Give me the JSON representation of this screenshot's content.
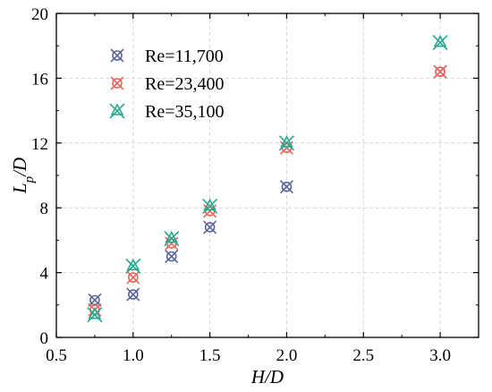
{
  "chart_data": {
    "type": "scatter",
    "xlabel": "H/D",
    "ylabel": "L_p/D",
    "xlim": [
      0.5,
      3.25
    ],
    "ylim": [
      0,
      20
    ],
    "xticks": [
      0.5,
      1.0,
      1.5,
      2.0,
      2.5,
      3.0
    ],
    "xtick_labels": [
      "0.5",
      "1.0",
      "1.5",
      "2.0",
      "2.5",
      "3.0"
    ],
    "yticks": [
      0,
      4,
      8,
      12,
      16,
      20
    ],
    "ytick_labels": [
      "0",
      "4",
      "8",
      "12",
      "16",
      "20"
    ],
    "grid": true,
    "legend_position": "top-left",
    "series": [
      {
        "name": "Re=11,700",
        "color": "#5a6699",
        "marker": "x-circle",
        "x": [
          0.75,
          1.0,
          1.25,
          1.5,
          2.0,
          3.0
        ],
        "y": [
          2.3,
          2.65,
          5.0,
          6.8,
          9.3,
          16.4
        ]
      },
      {
        "name": "Re=23,400",
        "color": "#e8665a",
        "marker": "x-circle",
        "x": [
          0.75,
          1.0,
          1.25,
          1.5,
          2.0,
          3.0
        ],
        "y": [
          1.7,
          3.7,
          5.8,
          7.8,
          11.7,
          16.4
        ]
      },
      {
        "name": "Re=35,100",
        "color": "#27a88e",
        "marker": "x-triangle",
        "x": [
          0.75,
          1.0,
          1.25,
          1.5,
          2.0,
          3.0
        ],
        "y": [
          1.4,
          4.4,
          6.1,
          8.1,
          12.0,
          18.2
        ]
      }
    ]
  }
}
